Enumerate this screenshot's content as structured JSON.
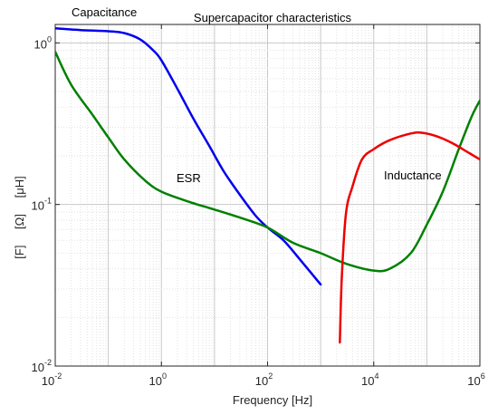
{
  "chart_data": {
    "type": "line",
    "title": "Supercapacitor characteristics",
    "xlabel": "Frequency [Hz]",
    "ylabel": [
      "[F]",
      "[Ω]",
      "[μH]"
    ],
    "x_scale": "log",
    "y_scale": "log",
    "xlim": [
      0.01,
      1000000
    ],
    "ylim": [
      0.01,
      1.3
    ],
    "grid": true,
    "x_ticks": [
      {
        "base": "10",
        "exp": "-2",
        "value": 0.01
      },
      {
        "base": "10",
        "exp": "0",
        "value": 1
      },
      {
        "base": "10",
        "exp": "2",
        "value": 100
      },
      {
        "base": "10",
        "exp": "4",
        "value": 10000
      },
      {
        "base": "10",
        "exp": "6",
        "value": 1000000
      }
    ],
    "y_ticks": [
      {
        "base": "10",
        "exp": "-2",
        "value": 0.01
      },
      {
        "base": "10",
        "exp": "-1",
        "value": 0.1
      },
      {
        "base": "10",
        "exp": "0",
        "value": 1
      }
    ],
    "annotations": [
      {
        "text": "Capacitance",
        "series": "Capacitance"
      },
      {
        "text": "ESR",
        "series": "ESR"
      },
      {
        "text": "Inductance",
        "series": "Inductance"
      }
    ],
    "series": [
      {
        "name": "Capacitance",
        "color": "#0000ee",
        "points": [
          [
            0.01,
            1.23
          ],
          [
            0.03,
            1.2
          ],
          [
            0.1,
            1.18
          ],
          [
            0.2,
            1.15
          ],
          [
            0.4,
            1.05
          ],
          [
            0.7,
            0.9
          ],
          [
            1,
            0.78
          ],
          [
            2,
            0.52
          ],
          [
            4,
            0.34
          ],
          [
            8,
            0.23
          ],
          [
            15,
            0.16
          ],
          [
            30,
            0.115
          ],
          [
            60,
            0.085
          ],
          [
            100,
            0.072
          ],
          [
            200,
            0.06
          ],
          [
            400,
            0.046
          ],
          [
            1000,
            0.032
          ]
        ]
      },
      {
        "name": "ESR",
        "color": "#008000",
        "points": [
          [
            0.01,
            0.88
          ],
          [
            0.02,
            0.55
          ],
          [
            0.05,
            0.36
          ],
          [
            0.1,
            0.26
          ],
          [
            0.2,
            0.19
          ],
          [
            0.5,
            0.14
          ],
          [
            1,
            0.12
          ],
          [
            3,
            0.105
          ],
          [
            10,
            0.093
          ],
          [
            30,
            0.083
          ],
          [
            100,
            0.072
          ],
          [
            300,
            0.058
          ],
          [
            1000,
            0.05
          ],
          [
            3000,
            0.043
          ],
          [
            10000,
            0.039
          ],
          [
            20000,
            0.04
          ],
          [
            50000,
            0.05
          ],
          [
            100000,
            0.075
          ],
          [
            200000,
            0.12
          ],
          [
            400000,
            0.22
          ],
          [
            700000,
            0.35
          ],
          [
            1000000,
            0.44
          ]
        ]
      },
      {
        "name": "Inductance",
        "color": "#ee0000",
        "points": [
          [
            2300,
            0.014
          ],
          [
            2500,
            0.035
          ],
          [
            3000,
            0.088
          ],
          [
            4000,
            0.13
          ],
          [
            6000,
            0.19
          ],
          [
            10000,
            0.22
          ],
          [
            20000,
            0.25
          ],
          [
            50000,
            0.275
          ],
          [
            80000,
            0.278
          ],
          [
            150000,
            0.265
          ],
          [
            300000,
            0.24
          ],
          [
            600000,
            0.21
          ],
          [
            1000000,
            0.19
          ]
        ]
      }
    ]
  }
}
